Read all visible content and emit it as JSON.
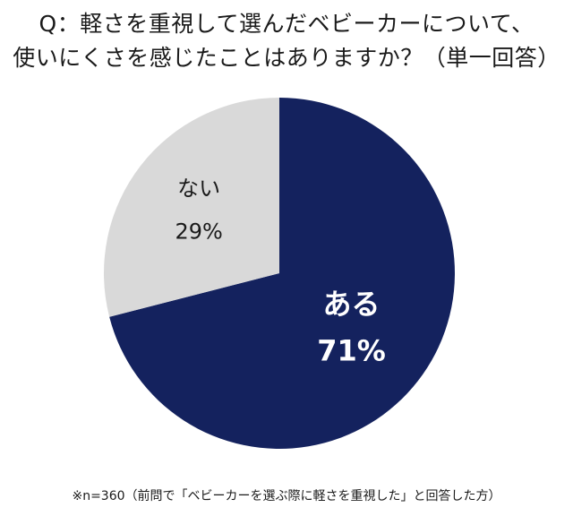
{
  "title_lines": [
    "Q：軽さを重視して選んだベビーカーについて、",
    "使いにくさを感じたことはありますか？（単一回答）"
  ],
  "note": "※n=360（前問で「ベビーカーを選ぶ際に軽さを重視した」と回答した方）",
  "chart_data": {
    "type": "pie",
    "categories": [
      "ある",
      "ない"
    ],
    "values": [
      71,
      29
    ],
    "unit": "%",
    "labels": [
      "71%",
      "29%"
    ],
    "colors": [
      "#14225e",
      "#d9d9d9"
    ],
    "label_colors": [
      "#ffffff",
      "#1a1a1a"
    ],
    "start": "12 o'clock",
    "direction": "clockwise"
  }
}
